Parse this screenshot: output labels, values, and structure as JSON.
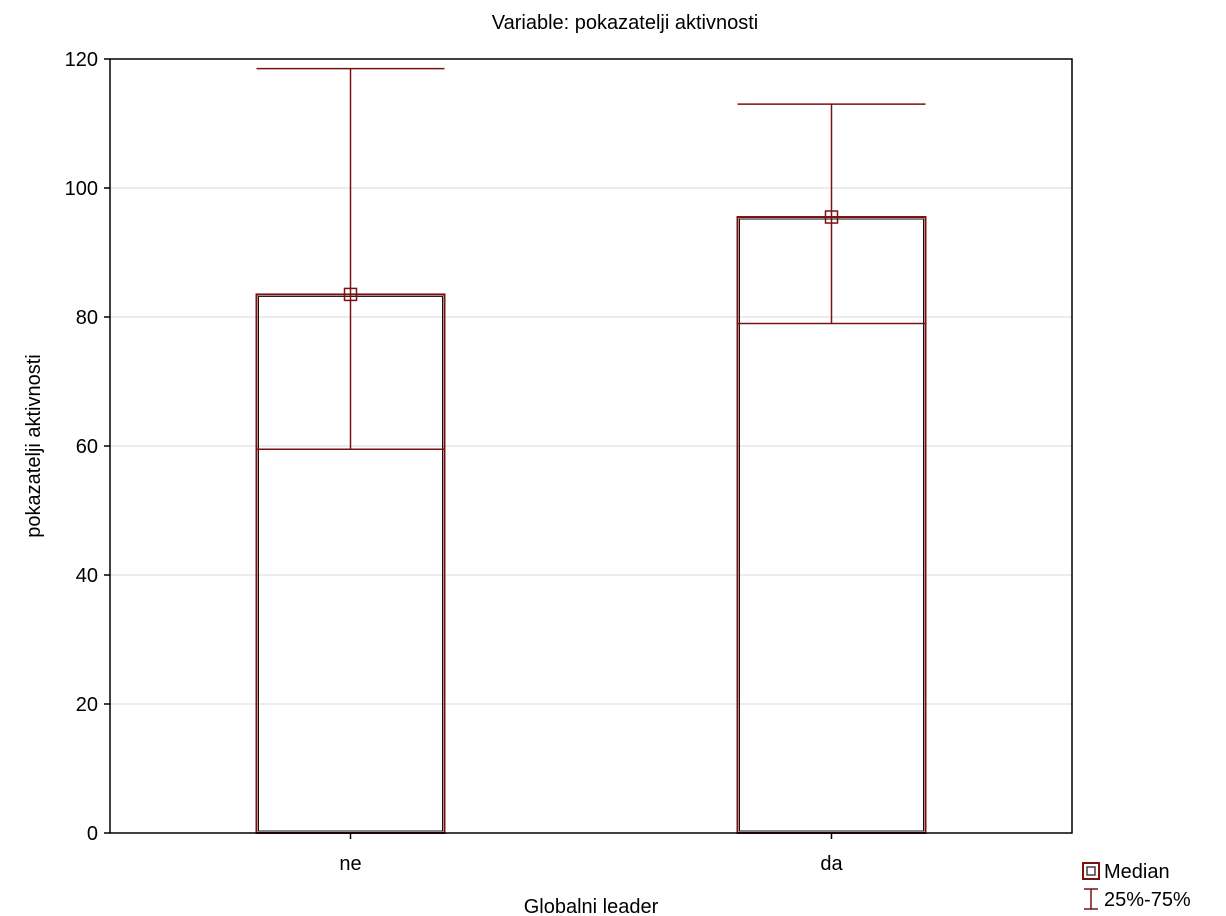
{
  "chart_data": {
    "type": "box",
    "title": "Variable: pokazatelji aktivnosti",
    "xlabel": "Globalni leader",
    "ylabel": "pokazatelji aktivnosti",
    "ylim": [
      0,
      120
    ],
    "yticks": [
      0,
      20,
      40,
      60,
      80,
      100,
      120
    ],
    "grid": true,
    "legend_position": "bottom-right",
    "categories": [
      "ne",
      "da"
    ],
    "boxes": [
      {
        "category": "ne",
        "bar_bottom": 0,
        "median": 83.5,
        "q1": 59.5,
        "q3": 118.5
      },
      {
        "category": "da",
        "bar_bottom": 0,
        "median": 95.5,
        "q1": 79,
        "q3": 113
      }
    ],
    "legend": [
      {
        "label": "Median",
        "symbol": "square"
      },
      {
        "label": "25%-75%",
        "symbol": "whisker"
      }
    ],
    "colors": {
      "series": "#7a1212",
      "axis": "#000000",
      "grid": "#d8d8d8"
    }
  }
}
